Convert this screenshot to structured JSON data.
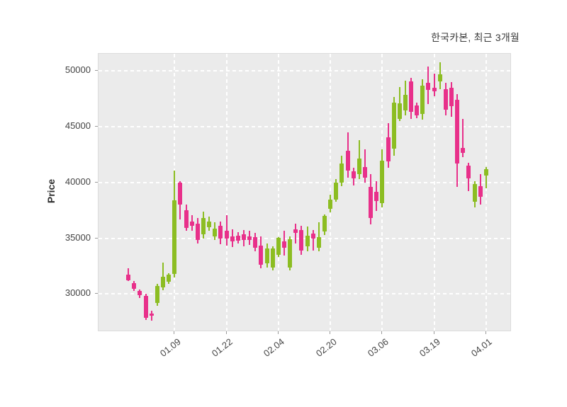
{
  "title": "한국카본, 최근 3개월",
  "y_axis": {
    "label": "Price",
    "ticks": [
      30000,
      35000,
      40000,
      45000,
      50000
    ],
    "domain": [
      26600,
      51550
    ]
  },
  "x_axis": {
    "tick_labels": [
      "01.09",
      "01.22",
      "02.04",
      "02.20",
      "03.06",
      "03.19",
      "04.01"
    ],
    "tick_indices": [
      8,
      17,
      26,
      35,
      44,
      53,
      62
    ]
  },
  "colors": {
    "up": "#8cbd22",
    "down": "#e8308a",
    "plot_bg": "#ebebeb",
    "grid": "#ffffff",
    "title_text": "#3a3a3a",
    "tick_text": "#454545",
    "tick_mark": "#9a9a9a"
  },
  "chart_data": {
    "type": "candlestick",
    "title": "한국카본, 최근 3개월",
    "ylabel": "Price",
    "ylim": [
      26600,
      51550
    ],
    "grid": "white-dashed",
    "layout": {
      "first_slot_offset": 42.2,
      "slot_width": 8.14
    },
    "ohlc": [
      [
        31750,
        32300,
        31150,
        31250
      ],
      [
        31000,
        31200,
        30300,
        30450
      ],
      [
        30300,
        30400,
        29650,
        29900
      ],
      [
        29850,
        30050,
        27700,
        27850
      ],
      [
        28250,
        28500,
        27600,
        28050
      ],
      [
        29200,
        30900,
        28950,
        30700
      ],
      [
        30600,
        32800,
        30350,
        31550
      ],
      [
        31100,
        31900,
        30900,
        31750
      ],
      [
        31800,
        41100,
        31500,
        38430
      ],
      [
        40000,
        40150,
        36700,
        38000
      ],
      [
        37500,
        38050,
        35650,
        35950
      ],
      [
        36500,
        37050,
        35650,
        36100
      ],
      [
        36320,
        36850,
        34520,
        34850
      ],
      [
        35370,
        37380,
        34960,
        36850
      ],
      [
        36000,
        36960,
        35690,
        36530
      ],
      [
        35200,
        36420,
        34840,
        35900
      ],
      [
        36150,
        36500,
        34500,
        35000
      ],
      [
        35690,
        37100,
        34350,
        34960
      ],
      [
        35200,
        35800,
        34240,
        34730
      ],
      [
        35250,
        35570,
        34520,
        34790
      ],
      [
        35360,
        35730,
        34310,
        34870
      ],
      [
        35200,
        35690,
        34420,
        34870
      ],
      [
        35080,
        35470,
        33860,
        34180
      ],
      [
        34370,
        35150,
        32290,
        32610
      ],
      [
        32730,
        34520,
        32400,
        34090
      ],
      [
        32400,
        34300,
        32100,
        34080
      ],
      [
        33540,
        35100,
        33300,
        35020
      ],
      [
        34700,
        35670,
        33430,
        34170
      ],
      [
        32400,
        35150,
        32100,
        34900
      ],
      [
        35780,
        36300,
        34550,
        35470
      ],
      [
        35730,
        36150,
        33500,
        33930
      ],
      [
        34250,
        36050,
        33820,
        35210
      ],
      [
        35420,
        35730,
        33930,
        34990
      ],
      [
        34140,
        36450,
        33830,
        35100
      ],
      [
        35630,
        37150,
        35310,
        37010
      ],
      [
        37640,
        38920,
        37330,
        38490
      ],
      [
        38490,
        40300,
        38280,
        39980
      ],
      [
        39980,
        42420,
        39700,
        41680
      ],
      [
        42850,
        44500,
        40450,
        41100
      ],
      [
        41040,
        41360,
        39770,
        40400
      ],
      [
        40750,
        43800,
        40320,
        42130
      ],
      [
        41400,
        43000,
        40000,
        40430
      ],
      [
        39590,
        40750,
        36260,
        36830
      ],
      [
        39160,
        40110,
        37470,
        38320
      ],
      [
        38180,
        43000,
        37750,
        41990
      ],
      [
        44030,
        45300,
        41300,
        41910
      ],
      [
        43030,
        47700,
        42400,
        47160
      ],
      [
        45720,
        48580,
        45500,
        47100
      ],
      [
        46460,
        49110,
        46030,
        47840
      ],
      [
        49050,
        49390,
        45720,
        46360
      ],
      [
        46900,
        47200,
        45800,
        46050
      ],
      [
        46170,
        49280,
        45640,
        48710
      ],
      [
        48920,
        50380,
        47020,
        48290
      ],
      [
        48520,
        49750,
        47730,
        48200
      ],
      [
        49070,
        50800,
        48360,
        49740
      ],
      [
        48350,
        48940,
        46030,
        46550
      ],
      [
        48500,
        49000,
        45930,
        46850
      ],
      [
        47420,
        47950,
        39600,
        41700
      ],
      [
        43080,
        45700,
        42300,
        42660
      ],
      [
        41550,
        41760,
        39260,
        40370
      ],
      [
        38300,
        40100,
        37800,
        39900
      ],
      [
        39680,
        40740,
        38000,
        38730
      ],
      [
        40640,
        41390,
        39470,
        41210
      ]
    ]
  }
}
